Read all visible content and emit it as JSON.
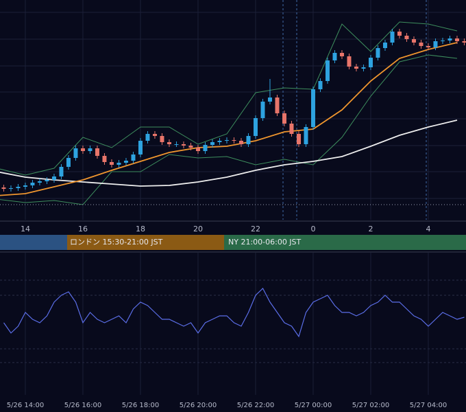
{
  "sessions": [
    "ロンドン 15:30-21:00 JST",
    "NY 21:00-06:00 JST"
  ],
  "chart_data": [
    {
      "type": "candlestick",
      "up_color": "#2ea3e0",
      "down_color": "#e8756a",
      "xlim": [
        13.12,
        29.31
      ],
      "ylim": [
        0,
        320
      ],
      "xticks": [
        14,
        16,
        18,
        20,
        22,
        {
          "value": 24,
          "label": "0"
        },
        {
          "value": 26,
          "label": "2"
        },
        {
          "value": 28,
          "label": "4"
        }
      ],
      "reference_line": 22,
      "x": [
        13.25,
        13.5,
        13.75,
        14,
        14.25,
        14.5,
        14.75,
        15,
        15.25,
        15.5,
        15.75,
        16,
        16.25,
        16.5,
        16.75,
        17,
        17.25,
        17.5,
        17.75,
        18,
        18.25,
        18.5,
        18.75,
        19,
        19.25,
        19.5,
        19.75,
        20,
        20.25,
        20.5,
        20.75,
        21,
        21.25,
        21.5,
        21.75,
        22,
        22.25,
        22.5,
        22.75,
        23,
        23.25,
        23.5,
        23.75,
        24,
        24.25,
        24.5,
        24.75,
        25,
        25.25,
        25.5,
        25.75,
        26,
        26.25,
        26.5,
        26.75,
        27,
        27.25,
        27.5,
        27.75,
        28,
        28.25,
        28.5,
        28.75,
        29,
        29.25
      ],
      "open": [
        47,
        45,
        46,
        48,
        50,
        54,
        56,
        58,
        63,
        77,
        90,
        104,
        100,
        104,
        93,
        84,
        80,
        83,
        86,
        95,
        115,
        125,
        122,
        113,
        110,
        110,
        108,
        105,
        100,
        109,
        113,
        115,
        116,
        115,
        110,
        122,
        148,
        172,
        178,
        155,
        140,
        125,
        110,
        135,
        190,
        202,
        232,
        243,
        238,
        223,
        220,
        222,
        236,
        250,
        258,
        274,
        268,
        263,
        258,
        253,
        251,
        260,
        261,
        264,
        260
      ],
      "high": [
        51,
        50,
        52,
        54,
        58,
        60,
        62,
        67,
        81,
        94,
        108,
        108,
        108,
        108,
        97,
        88,
        87,
        90,
        99,
        119,
        129,
        129,
        126,
        117,
        114,
        114,
        112,
        109,
        113,
        117,
        119,
        120,
        120,
        119,
        126,
        152,
        176,
        205,
        182,
        159,
        144,
        129,
        139,
        194,
        206,
        236,
        247,
        247,
        242,
        227,
        226,
        240,
        254,
        262,
        278,
        278,
        272,
        267,
        262,
        257,
        264,
        265,
        268,
        268,
        264
      ],
      "low": [
        41,
        41,
        42,
        44,
        46,
        50,
        52,
        54,
        59,
        73,
        86,
        96,
        96,
        89,
        80,
        76,
        76,
        79,
        82,
        91,
        111,
        118,
        109,
        106,
        106,
        104,
        101,
        96,
        96,
        105,
        109,
        111,
        111,
        106,
        106,
        118,
        144,
        168,
        151,
        136,
        121,
        106,
        106,
        131,
        186,
        198,
        228,
        234,
        219,
        216,
        216,
        218,
        232,
        246,
        254,
        264,
        259,
        254,
        249,
        247,
        247,
        256,
        257,
        256,
        254
      ],
      "close": [
        45,
        46,
        48,
        50,
        54,
        56,
        58,
        63,
        77,
        90,
        104,
        100,
        104,
        93,
        84,
        80,
        83,
        86,
        95,
        115,
        125,
        122,
        113,
        110,
        110,
        108,
        105,
        100,
        109,
        113,
        115,
        116,
        115,
        110,
        122,
        148,
        172,
        178,
        155,
        140,
        125,
        110,
        135,
        190,
        202,
        232,
        243,
        238,
        223,
        220,
        222,
        236,
        250,
        258,
        274,
        268,
        263,
        258,
        253,
        251,
        260,
        261,
        264,
        260,
        258
      ],
      "lines": [
        {
          "color": "#3e8f5e",
          "x": [
            13,
            14,
            15,
            16,
            17,
            18,
            19,
            20,
            21,
            22,
            23,
            24,
            25,
            26,
            27,
            28,
            29
          ],
          "values": [
            75,
            65,
            75,
            120,
            105,
            135,
            135,
            110,
            125,
            185,
            192,
            190,
            285,
            245,
            288,
            285,
            275
          ]
        },
        {
          "color": "#3e8f5e",
          "x": [
            13,
            14,
            15,
            16,
            17,
            18,
            19,
            20,
            21,
            22,
            23,
            24,
            25,
            26,
            27,
            28,
            29
          ],
          "values": [
            30,
            25,
            28,
            22,
            70,
            70,
            95,
            90,
            92,
            80,
            88,
            80,
            120,
            180,
            230,
            240,
            235
          ]
        },
        {
          "color": "#eeeeee",
          "x": [
            13,
            14,
            15,
            16,
            17,
            18,
            19,
            20,
            21,
            22,
            23,
            24,
            25,
            26,
            27,
            28,
            29
          ],
          "values": [
            70,
            62,
            58,
            55,
            52,
            49,
            50,
            55,
            62,
            72,
            80,
            85,
            92,
            107,
            123,
            135,
            145
          ]
        },
        {
          "color": "#f0962e",
          "x": [
            13,
            14,
            15,
            16,
            17,
            18,
            19,
            20,
            21,
            22,
            23,
            24,
            25,
            26,
            27,
            28,
            29
          ],
          "values": [
            35,
            38,
            48,
            58,
            72,
            85,
            98,
            105,
            107,
            115,
            128,
            132,
            160,
            202,
            235,
            248,
            258
          ]
        }
      ]
    },
    {
      "type": "line",
      "xlim": [
        13.12,
        29.31
      ],
      "ylim": [
        0,
        160
      ],
      "xticks": [
        {
          "value": 14,
          "label": "5/26 14:00"
        },
        {
          "value": 16,
          "label": "5/26 16:00"
        },
        {
          "value": 18,
          "label": "5/26 18:00"
        },
        {
          "value": 20,
          "label": "5/26 20:00"
        },
        {
          "value": 22,
          "label": "5/26 22:00"
        },
        {
          "value": 24,
          "label": "5/27 00:00"
        },
        {
          "value": 26,
          "label": "5/27 02:00"
        },
        {
          "value": 28,
          "label": "5/27 04:00"
        }
      ],
      "x": [
        13.25,
        13.5,
        13.75,
        14,
        14.25,
        14.5,
        14.75,
        15,
        15.25,
        15.5,
        15.75,
        16,
        16.25,
        16.5,
        16.75,
        17,
        17.25,
        17.5,
        17.75,
        18,
        18.25,
        18.5,
        18.75,
        19,
        19.25,
        19.5,
        19.75,
        20,
        20.25,
        20.5,
        20.75,
        21,
        21.25,
        21.5,
        21.75,
        22,
        22.25,
        22.5,
        22.75,
        23,
        23.25,
        23.5,
        23.75,
        24,
        24.25,
        24.5,
        24.75,
        25,
        25.25,
        25.5,
        25.75,
        26,
        26.25,
        26.5,
        26.75,
        27,
        27.25,
        27.5,
        27.75,
        28,
        28.25,
        28.5,
        28.75,
        29,
        29.25
      ],
      "series": [
        {
          "color": "#5b6ee8",
          "values": [
            70,
            55,
            65,
            85,
            75,
            70,
            80,
            100,
            110,
            115,
            100,
            70,
            85,
            75,
            70,
            75,
            80,
            70,
            90,
            100,
            95,
            85,
            75,
            75,
            70,
            65,
            70,
            55,
            70,
            75,
            80,
            80,
            70,
            65,
            85,
            110,
            120,
            100,
            85,
            70,
            65,
            50,
            85,
            100,
            105,
            110,
            95,
            85,
            85,
            80,
            85,
            95,
            100,
            110,
            100,
            100,
            90,
            80,
            75,
            65,
            75,
            85,
            80,
            75,
            78
          ]
        }
      ]
    }
  ]
}
